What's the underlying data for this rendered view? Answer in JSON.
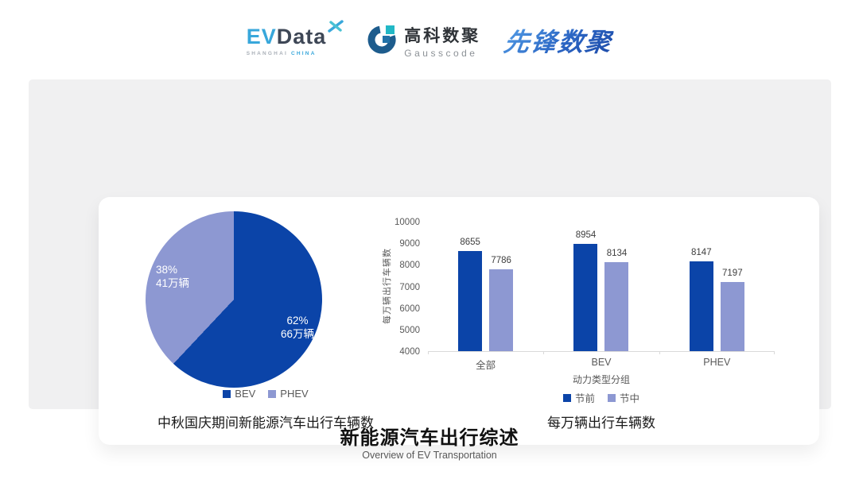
{
  "header": {
    "evdata": {
      "part1": "EV",
      "part2": "Data",
      "tagline_left": "SHANGHAI",
      "tagline_right": "CHINA"
    },
    "gausscode": {
      "name_cn": "高科数聚",
      "name_en": "Gausscode"
    },
    "pioneer": {
      "name": "先锋数聚"
    }
  },
  "colors": {
    "series_dark": "#0b44a8",
    "series_light": "#8d98d2",
    "panel_gray": "#f0f0f1",
    "axis_text": "#595959",
    "axis_line": "#d9d9d9"
  },
  "chart_data": [
    {
      "type": "pie",
      "title": "中秋国庆期间新能源汽车出行车辆数",
      "start_angle_deg": 0,
      "direction": "clockwise",
      "slices": [
        {
          "label": "BEV",
          "percent": 62,
          "lines": [
            "62%",
            "66万辆"
          ],
          "color": "#0b44a8"
        },
        {
          "label": "PHEV",
          "percent": 38,
          "lines": [
            "38%",
            "41万辆"
          ],
          "color": "#8d98d2"
        }
      ],
      "legend": [
        "BEV",
        "PHEV"
      ],
      "legend_position": "bottom"
    },
    {
      "type": "bar",
      "title": "每万辆出行车辆数",
      "categories": [
        "全部",
        "BEV",
        "PHEV"
      ],
      "series": [
        {
          "name": "节前",
          "color": "#0b44a8",
          "values": [
            8655,
            8954,
            8147
          ]
        },
        {
          "name": "节中",
          "color": "#8d98d2",
          "values": [
            7786,
            8134,
            7197
          ]
        }
      ],
      "xlabel": "动力类型分组",
      "ylabel": "每万辆出行车辆数",
      "ylim": [
        4000,
        10000
      ],
      "yticks": [
        10000,
        9000,
        8000,
        7000,
        6000,
        5000,
        4000
      ],
      "grid": false,
      "legend_position": "bottom"
    }
  ],
  "footer": {
    "title": "新能源汽车出行综述",
    "subtitle": "Overview of EV Transportation"
  }
}
